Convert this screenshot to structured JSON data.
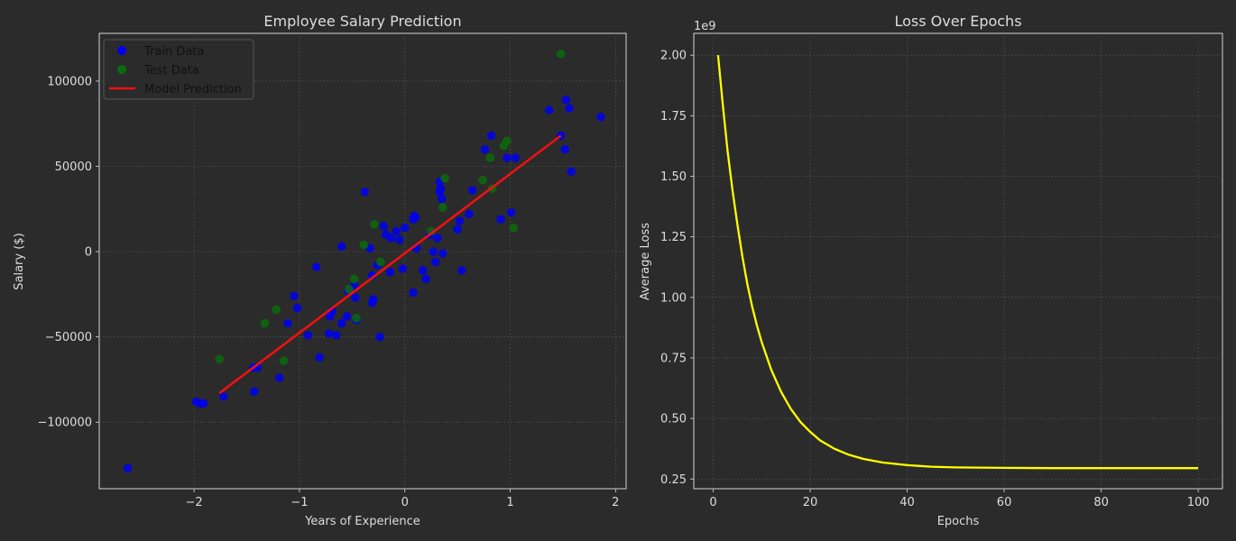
{
  "chart_data": [
    {
      "type": "scatter",
      "title": "Employee Salary Prediction",
      "xlabel": "Years of Experience",
      "ylabel": "Salary ($)",
      "xlim": [
        -2.9,
        2.1
      ],
      "ylim": [
        -139000,
        128000
      ],
      "xticks": [
        -2,
        -1,
        0,
        1,
        2
      ],
      "xtick_labels": [
        "−2",
        "−1",
        "0",
        "1",
        "2"
      ],
      "yticks": [
        -100000,
        -50000,
        0,
        50000,
        100000
      ],
      "ytick_labels": [
        "−100000",
        "−50000",
        "0",
        "50000",
        "100000"
      ],
      "grid": true,
      "legend_position": "top-left",
      "series": [
        {
          "name": "Train Data",
          "kind": "scatter",
          "color": "#0000ee",
          "points": [
            [
              -2.63,
              -127000
            ],
            [
              -1.98,
              -88000
            ],
            [
              -1.94,
              -89000
            ],
            [
              -1.91,
              -89000
            ],
            [
              -1.72,
              -85000
            ],
            [
              -1.44,
              -68000
            ],
            [
              -1.43,
              -82000
            ],
            [
              -1.4,
              -68000
            ],
            [
              -1.19,
              -74000
            ],
            [
              -1.11,
              -42000
            ],
            [
              -1.05,
              -26000
            ],
            [
              -1.02,
              -33000
            ],
            [
              -0.92,
              -49000
            ],
            [
              -0.84,
              -9000
            ],
            [
              -0.81,
              -62000
            ],
            [
              -0.72,
              -48000
            ],
            [
              -0.71,
              -38000
            ],
            [
              -0.69,
              -35000
            ],
            [
              -0.65,
              -49000
            ],
            [
              -0.6,
              -42000
            ],
            [
              -0.6,
              3000
            ],
            [
              -0.55,
              -38000
            ],
            [
              -0.54,
              -23000
            ],
            [
              -0.48,
              -20000
            ],
            [
              -0.47,
              -27000
            ],
            [
              -0.46,
              -40000
            ],
            [
              -0.38,
              35000
            ],
            [
              -0.33,
              2000
            ],
            [
              -0.31,
              -14000
            ],
            [
              -0.31,
              -30000
            ],
            [
              -0.3,
              -28000
            ],
            [
              -0.26,
              -8000
            ],
            [
              -0.24,
              -50000
            ],
            [
              -0.2,
              15000
            ],
            [
              -0.18,
              10000
            ],
            [
              -0.14,
              -12000
            ],
            [
              -0.13,
              8000
            ],
            [
              -0.08,
              12000
            ],
            [
              -0.05,
              7000
            ],
            [
              -0.02,
              -10000
            ],
            [
              0.0,
              14000
            ],
            [
              0.08,
              19000
            ],
            [
              0.08,
              -24000
            ],
            [
              0.09,
              21000
            ],
            [
              0.1,
              20000
            ],
            [
              0.11,
              2000
            ],
            [
              0.17,
              -11000
            ],
            [
              0.2,
              -16000
            ],
            [
              0.24,
              10000
            ],
            [
              0.27,
              0
            ],
            [
              0.29,
              -6000
            ],
            [
              0.31,
              8000
            ],
            [
              0.33,
              35000
            ],
            [
              0.33,
              41000
            ],
            [
              0.34,
              37000
            ],
            [
              0.35,
              31000
            ],
            [
              0.36,
              -1000
            ],
            [
              0.5,
              13000
            ],
            [
              0.52,
              18000
            ],
            [
              0.54,
              -11000
            ],
            [
              0.61,
              22000
            ],
            [
              0.64,
              36000
            ],
            [
              0.76,
              60000
            ],
            [
              0.82,
              68000
            ],
            [
              0.91,
              19000
            ],
            [
              0.97,
              55000
            ],
            [
              1.01,
              23000
            ],
            [
              1.05,
              55000
            ],
            [
              1.37,
              83000
            ],
            [
              1.48,
              68000
            ],
            [
              1.52,
              60000
            ],
            [
              1.53,
              89000
            ],
            [
              1.56,
              84000
            ],
            [
              1.58,
              47000
            ],
            [
              1.86,
              79000
            ]
          ]
        },
        {
          "name": "Test Data",
          "kind": "scatter",
          "color": "#0b6b0b",
          "points": [
            [
              -1.76,
              -63000
            ],
            [
              -1.33,
              -42000
            ],
            [
              -1.22,
              -34000
            ],
            [
              -1.15,
              -64000
            ],
            [
              -0.53,
              -22000
            ],
            [
              -0.48,
              -16000
            ],
            [
              -0.46,
              -39000
            ],
            [
              -0.39,
              4000
            ],
            [
              -0.29,
              16000
            ],
            [
              -0.23,
              -6000
            ],
            [
              0.25,
              12000
            ],
            [
              0.36,
              26000
            ],
            [
              0.38,
              43000
            ],
            [
              0.74,
              42000
            ],
            [
              0.81,
              55000
            ],
            [
              0.83,
              37000
            ],
            [
              0.94,
              62000
            ],
            [
              0.97,
              65000
            ],
            [
              1.03,
              14000
            ],
            [
              1.48,
              116000
            ]
          ]
        },
        {
          "name": "Model Prediction",
          "kind": "line",
          "color": "#ee1111",
          "points": [
            [
              -1.76,
              -83000
            ],
            [
              1.48,
              68000
            ]
          ]
        }
      ]
    },
    {
      "type": "line",
      "title": "Loss Over Epochs",
      "xlabel": "Epochs",
      "ylabel": "Average Loss",
      "multiplier_label": "1e9",
      "xlim": [
        -4,
        105
      ],
      "ylim": [
        0.21,
        2.09
      ],
      "xticks": [
        0,
        20,
        40,
        60,
        80,
        100
      ],
      "xtick_labels": [
        "0",
        "20",
        "40",
        "60",
        "80",
        "100"
      ],
      "yticks": [
        0.25,
        0.5,
        0.75,
        1.0,
        1.25,
        1.5,
        1.75,
        2.0
      ],
      "ytick_labels": [
        "0.25",
        "0.50",
        "0.75",
        "1.00",
        "1.25",
        "1.50",
        "1.75",
        "2.00"
      ],
      "grid": true,
      "series": [
        {
          "color": "#ffff00",
          "x": [
            1,
            2,
            3,
            4,
            5,
            6,
            7,
            8,
            9,
            10,
            12,
            14,
            16,
            18,
            20,
            22,
            25,
            28,
            31,
            35,
            40,
            45,
            50,
            60,
            70,
            80,
            90,
            100
          ],
          "y": [
            2.0,
            1.79,
            1.6,
            1.44,
            1.3,
            1.17,
            1.06,
            0.965,
            0.885,
            0.815,
            0.7,
            0.61,
            0.54,
            0.485,
            0.445,
            0.41,
            0.375,
            0.35,
            0.333,
            0.318,
            0.307,
            0.301,
            0.298,
            0.296,
            0.295,
            0.295,
            0.295,
            0.295
          ]
        }
      ]
    }
  ]
}
